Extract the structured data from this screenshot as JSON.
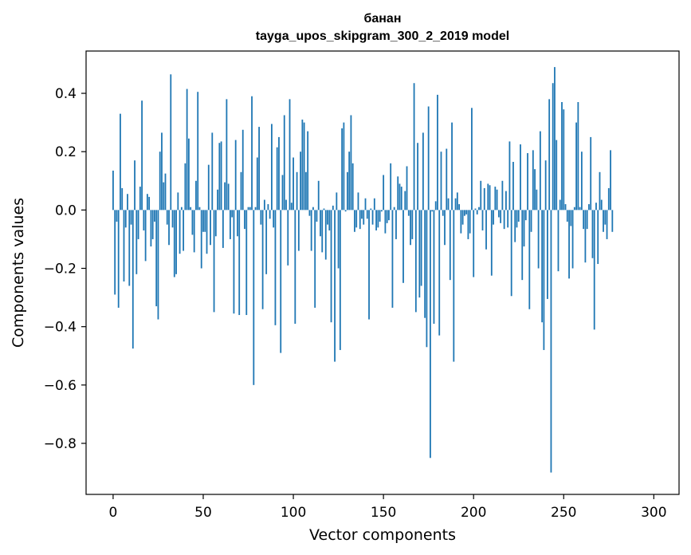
{
  "chart_data": {
    "type": "bar",
    "title": "банан",
    "subtitle": "tayga_upos_skipgram_300_2_2019 model",
    "xlabel": "Vector components",
    "ylabel": "Components values",
    "xlim": [
      -15,
      314
    ],
    "ylim": [
      -0.975,
      0.545
    ],
    "xticks": [
      0,
      50,
      100,
      150,
      200,
      250,
      300
    ],
    "xtick_labels": [
      "0",
      "50",
      "100",
      "150",
      "200",
      "250",
      "300"
    ],
    "yticks": [
      -0.8,
      -0.6,
      -0.4,
      -0.2,
      0.0,
      0.2,
      0.4
    ],
    "ytick_labels": [
      "−0.8",
      "−0.6",
      "−0.4",
      "−0.2",
      "0.0",
      "0.2",
      "0.4"
    ],
    "color": "#1f77b4",
    "values": [
      0.135,
      -0.29,
      -0.04,
      -0.335,
      0.33,
      0.075,
      -0.245,
      -0.06,
      0.055,
      -0.26,
      -0.05,
      -0.475,
      0.17,
      -0.22,
      -0.1,
      0.08,
      0.375,
      -0.07,
      -0.175,
      0.055,
      0.045,
      -0.125,
      -0.1,
      -0.04,
      -0.33,
      -0.375,
      0.2,
      0.265,
      0.095,
      0.125,
      -0.05,
      -0.12,
      0.465,
      -0.06,
      -0.23,
      -0.22,
      0.06,
      -0.15,
      0.01,
      -0.14,
      0.16,
      0.415,
      0.245,
      0.01,
      -0.085,
      -0.145,
      0.1,
      0.405,
      0.01,
      -0.2,
      -0.075,
      -0.075,
      -0.15,
      0.155,
      -0.12,
      0.265,
      -0.35,
      -0.09,
      0.07,
      0.23,
      0.235,
      -0.13,
      0.095,
      0.38,
      0.09,
      -0.1,
      -0.025,
      -0.355,
      0.24,
      -0.09,
      -0.36,
      0.13,
      0.275,
      -0.065,
      -0.36,
      0.01,
      0.01,
      0.39,
      -0.6,
      0.01,
      0.18,
      0.285,
      -0.05,
      -0.34,
      0.035,
      -0.22,
      0.02,
      -0.03,
      0.295,
      -0.06,
      -0.395,
      0.215,
      0.25,
      -0.49,
      0.12,
      0.325,
      0.035,
      -0.19,
      0.38,
      0.025,
      0.18,
      -0.39,
      0.13,
      -0.14,
      0.2,
      0.31,
      0.3,
      0.13,
      0.27,
      -0.02,
      -0.14,
      0.01,
      -0.335,
      -0.04,
      0.1,
      -0.09,
      -0.145,
      0.005,
      -0.17,
      -0.05,
      -0.07,
      -0.385,
      0.015,
      -0.52,
      0.06,
      -0.2,
      -0.48,
      0.28,
      0.3,
      -0.005,
      0.13,
      0.2,
      0.325,
      0.16,
      -0.075,
      -0.06,
      0.06,
      -0.065,
      -0.03,
      -0.05,
      0.04,
      -0.03,
      -0.375,
      0.005,
      -0.05,
      0.04,
      -0.07,
      -0.06,
      -0.04,
      -0.005,
      0.12,
      -0.08,
      -0.045,
      -0.035,
      0.16,
      -0.335,
      0.01,
      -0.1,
      0.115,
      0.09,
      0.08,
      -0.25,
      0.065,
      0.15,
      -0.02,
      -0.12,
      -0.1,
      0.435,
      -0.35,
      0.23,
      -0.3,
      -0.26,
      0.265,
      -0.37,
      -0.47,
      0.355,
      -0.85,
      -0.005,
      -0.39,
      0.03,
      0.395,
      -0.43,
      0.2,
      -0.02,
      -0.12,
      0.21,
      0.04,
      -0.24,
      0.3,
      -0.52,
      0.04,
      0.06,
      0.02,
      -0.08,
      -0.05,
      -0.02,
      -0.015,
      -0.1,
      -0.08,
      0.35,
      -0.23,
      0.005,
      -0.015,
      0.01,
      0.1,
      -0.07,
      0.075,
      -0.135,
      0.09,
      0.085,
      -0.225,
      -0.05,
      0.08,
      0.07,
      -0.025,
      -0.045,
      0.1,
      -0.065,
      0.065,
      -0.06,
      0.235,
      -0.295,
      0.165,
      -0.11,
      -0.06,
      -0.04,
      0.225,
      -0.24,
      -0.125,
      -0.035,
      0.195,
      -0.34,
      -0.075,
      0.205,
      0.14,
      0.07,
      -0.2,
      0.27,
      -0.385,
      -0.48,
      0.17,
      -0.305,
      0.38,
      -0.9,
      0.435,
      0.49,
      0.24,
      -0.21,
      0.035,
      0.37,
      0.345,
      0.02,
      -0.04,
      -0.235,
      -0.055,
      -0.2,
      0.01,
      0.3,
      0.37,
      0.01,
      0.2,
      -0.065,
      -0.18,
      -0.065,
      0.02,
      0.25,
      -0.165,
      -0.41,
      0.025,
      -0.185,
      0.13,
      0.035,
      -0.075,
      -0.05,
      -0.1,
      0.075,
      0.205,
      -0.075
    ]
  }
}
